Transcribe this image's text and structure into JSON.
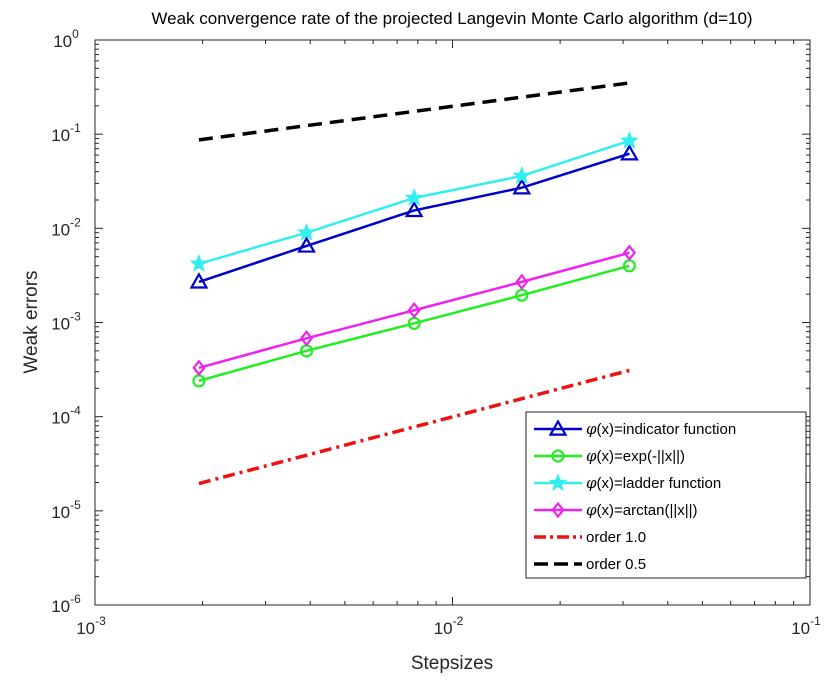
{
  "chart_data": {
    "type": "line",
    "title": "Weak convergence rate of the projected Langevin Monte Carlo algorithm (d=10)",
    "xlabel": "Stepsizes",
    "ylabel": "Weak errors",
    "xscale": "log",
    "yscale": "log",
    "xlim": [
      0.001,
      0.1
    ],
    "ylim": [
      1e-06,
      1
    ],
    "x_ticks": [
      {
        "base": "10",
        "exp": "-3",
        "value": 0.001
      },
      {
        "base": "10",
        "exp": "-2",
        "value": 0.01
      },
      {
        "base": "10",
        "exp": "-1",
        "value": 0.1
      }
    ],
    "y_ticks": [
      {
        "base": "10",
        "exp": "-6",
        "value": 1e-06
      },
      {
        "base": "10",
        "exp": "-5",
        "value": 1e-05
      },
      {
        "base": "10",
        "exp": "-4",
        "value": 0.0001
      },
      {
        "base": "10",
        "exp": "-3",
        "value": 0.001
      },
      {
        "base": "10",
        "exp": "-2",
        "value": 0.01
      },
      {
        "base": "10",
        "exp": "-1",
        "value": 0.1
      },
      {
        "base": "10",
        "exp": "0",
        "value": 1
      }
    ],
    "grid": false,
    "legend_position": "bottom-right",
    "series": [
      {
        "key": "indicator",
        "phi": "φ",
        "name": "(x)=indicator function",
        "color": "#0000cc",
        "marker": "triangle",
        "dash": "solid",
        "x": [
          0.001953125,
          0.00390625,
          0.0078125,
          0.015625,
          0.03125
        ],
        "y": [
          0.0027,
          0.0065,
          0.0155,
          0.027,
          0.062
        ]
      },
      {
        "key": "exp",
        "phi": "φ",
        "name": "(x)=exp(-||x||)",
        "color": "#22ee22",
        "marker": "circle",
        "dash": "solid",
        "x": [
          0.001953125,
          0.00390625,
          0.0078125,
          0.015625,
          0.03125
        ],
        "y": [
          0.00024,
          0.0005,
          0.00098,
          0.00195,
          0.004
        ]
      },
      {
        "key": "ladder",
        "phi": "φ",
        "name": "(x)=ladder function",
        "color": "#33eeee",
        "marker": "star",
        "dash": "solid",
        "x": [
          0.001953125,
          0.00390625,
          0.0078125,
          0.015625,
          0.03125
        ],
        "y": [
          0.0042,
          0.009,
          0.021,
          0.036,
          0.085
        ]
      },
      {
        "key": "arctan",
        "phi": "φ",
        "name": "(x)=arctan(||x||)",
        "color": "#ee22ee",
        "marker": "diamond",
        "dash": "solid",
        "x": [
          0.001953125,
          0.00390625,
          0.0078125,
          0.015625,
          0.03125
        ],
        "y": [
          0.00033,
          0.00068,
          0.00135,
          0.0027,
          0.0055
        ]
      },
      {
        "key": "order1",
        "phi": "",
        "name": "order 1.0",
        "color": "#ee1111",
        "marker": "none",
        "dash": "dashdot",
        "x": [
          0.001953125,
          0.03125
        ],
        "y": [
          1.95e-05,
          0.00031
        ]
      },
      {
        "key": "order05",
        "phi": "",
        "name": "order 0.5",
        "color": "#000000",
        "marker": "none",
        "dash": "dashed",
        "x": [
          0.001953125,
          0.03125
        ],
        "y": [
          0.087,
          0.35
        ]
      }
    ]
  }
}
